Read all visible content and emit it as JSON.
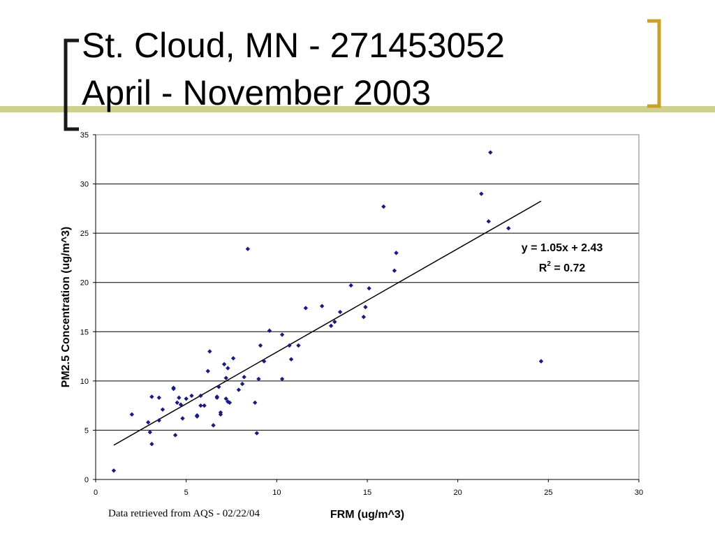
{
  "slide": {
    "title_line1": "St. Cloud, MN - 271453052",
    "title_line2": "April - November 2003",
    "footnote": "Data retrieved from AQS - 02/22/04"
  },
  "colors": {
    "accent_bar": "#cfcf8f",
    "bracket": "#c9a227",
    "point": "#1a1a80",
    "plot_border": "#808080",
    "gridline": "#000000"
  },
  "chart_data": {
    "type": "scatter",
    "title": "",
    "xlabel": "FRM (ug/m^3)",
    "ylabel": "PM2.5 Concentration (ug/m^3)",
    "xlim": [
      0,
      30
    ],
    "ylim": [
      0,
      35
    ],
    "xticks": [
      0,
      5,
      10,
      15,
      20,
      25,
      30
    ],
    "yticks": [
      0,
      5,
      10,
      15,
      20,
      25,
      30,
      35
    ],
    "grid": "horizontal",
    "equation": "y = 1.05x + 2.43",
    "r2_label": "R",
    "r2_exponent": "2",
    "r2_value": " = 0.72",
    "trendline": {
      "slope": 1.05,
      "intercept": 2.43,
      "x_range": [
        1.0,
        24.6
      ]
    },
    "points": [
      [
        1.0,
        0.9
      ],
      [
        2.0,
        6.6
      ],
      [
        2.9,
        5.8
      ],
      [
        3.0,
        4.8
      ],
      [
        3.1,
        3.6
      ],
      [
        3.1,
        8.4
      ],
      [
        3.5,
        6.0
      ],
      [
        3.5,
        8.3
      ],
      [
        3.7,
        7.1
      ],
      [
        4.3,
        9.3
      ],
      [
        4.3,
        9.2
      ],
      [
        4.4,
        4.5
      ],
      [
        4.5,
        7.8
      ],
      [
        4.6,
        8.3
      ],
      [
        4.7,
        7.6
      ],
      [
        4.8,
        6.2
      ],
      [
        5.0,
        8.2
      ],
      [
        5.3,
        8.5
      ],
      [
        5.6,
        6.5
      ],
      [
        5.6,
        6.4
      ],
      [
        5.8,
        7.5
      ],
      [
        5.8,
        8.5
      ],
      [
        6.0,
        7.5
      ],
      [
        6.2,
        11.0
      ],
      [
        6.3,
        13.0
      ],
      [
        6.5,
        5.5
      ],
      [
        6.7,
        8.4
      ],
      [
        6.7,
        8.3
      ],
      [
        6.8,
        9.4
      ],
      [
        6.9,
        6.8
      ],
      [
        6.9,
        6.6
      ],
      [
        7.1,
        11.7
      ],
      [
        7.2,
        8.2
      ],
      [
        7.2,
        10.3
      ],
      [
        7.3,
        11.3
      ],
      [
        7.3,
        7.9
      ],
      [
        7.4,
        7.8
      ],
      [
        7.6,
        12.3
      ],
      [
        7.9,
        9.1
      ],
      [
        8.1,
        9.7
      ],
      [
        8.2,
        10.4
      ],
      [
        8.4,
        23.4
      ],
      [
        8.8,
        7.8
      ],
      [
        8.9,
        4.7
      ],
      [
        9.0,
        10.2
      ],
      [
        9.1,
        13.6
      ],
      [
        9.3,
        12.0
      ],
      [
        9.6,
        15.1
      ],
      [
        10.3,
        14.7
      ],
      [
        10.3,
        10.2
      ],
      [
        10.7,
        13.6
      ],
      [
        10.8,
        12.2
      ],
      [
        11.2,
        13.6
      ],
      [
        11.6,
        17.4
      ],
      [
        12.5,
        17.6
      ],
      [
        13.0,
        15.6
      ],
      [
        13.2,
        16.0
      ],
      [
        13.5,
        17.0
      ],
      [
        14.1,
        19.7
      ],
      [
        14.8,
        16.5
      ],
      [
        14.9,
        17.5
      ],
      [
        15.1,
        19.4
      ],
      [
        15.9,
        27.7
      ],
      [
        16.5,
        21.2
      ],
      [
        16.6,
        23.0
      ],
      [
        21.3,
        29.0
      ],
      [
        21.7,
        26.2
      ],
      [
        21.8,
        33.2
      ],
      [
        22.8,
        25.5
      ],
      [
        24.6,
        12.0
      ]
    ]
  }
}
